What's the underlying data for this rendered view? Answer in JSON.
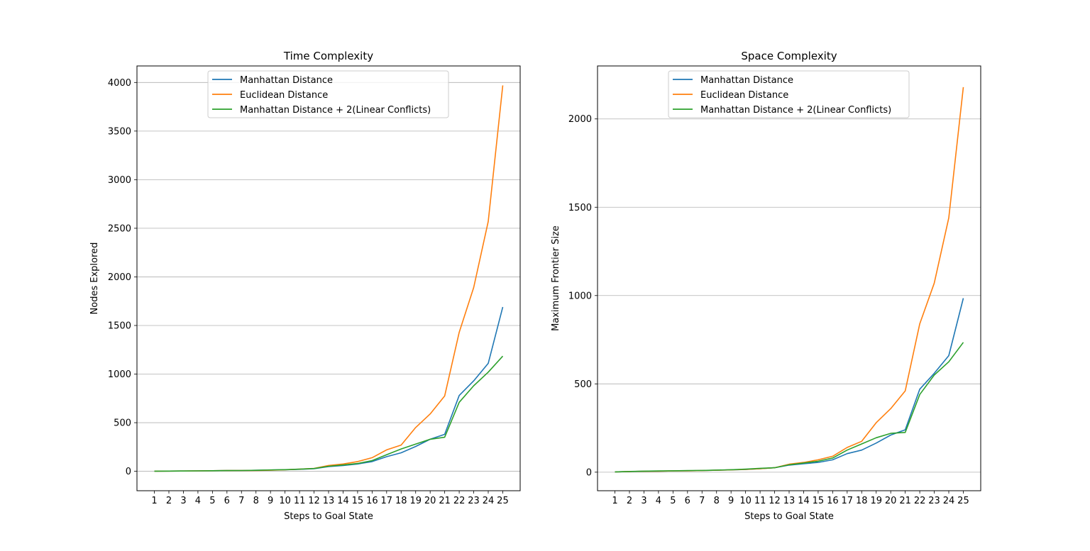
{
  "chart_data": [
    {
      "type": "line",
      "title": "Time Complexity",
      "xlabel": "Steps to Goal State",
      "ylabel": "Nodes Explored",
      "x": [
        1,
        2,
        3,
        4,
        5,
        6,
        7,
        8,
        9,
        10,
        11,
        12,
        13,
        14,
        15,
        16,
        17,
        18,
        19,
        20,
        21,
        22,
        23,
        24,
        25
      ],
      "ylim": [
        -200,
        4170
      ],
      "yticks": [
        0,
        500,
        1000,
        1500,
        2000,
        2500,
        3000,
        3500,
        4000
      ],
      "grid": "horizontal",
      "legend_position": "upper center",
      "series": [
        {
          "name": "Manhattan Distance",
          "color": "#1f77b4",
          "values": [
            1,
            2,
            3,
            4,
            6,
            7,
            8,
            10,
            13,
            16,
            20,
            26,
            48,
            60,
            75,
            100,
            150,
            190,
            255,
            330,
            380,
            780,
            930,
            1110,
            1690
          ]
        },
        {
          "name": "Euclidean Distance",
          "color": "#ff7f0e",
          "values": [
            1,
            2,
            3,
            4,
            6,
            7,
            8,
            9,
            11,
            15,
            22,
            30,
            60,
            75,
            100,
            140,
            220,
            270,
            450,
            590,
            775,
            1430,
            1890,
            2570,
            3970
          ]
        },
        {
          "name": "Manhattan Distance + 2(Linear Conflicts)",
          "color": "#2ca02c",
          "values": [
            1,
            2,
            3,
            4,
            6,
            7,
            8,
            10,
            14,
            17,
            22,
            28,
            52,
            65,
            80,
            110,
            170,
            230,
            280,
            330,
            350,
            710,
            880,
            1020,
            1185
          ]
        }
      ]
    },
    {
      "type": "line",
      "title": "Space Complexity",
      "xlabel": "Steps to Goal State",
      "ylabel": "Maximum Frontier Size",
      "x": [
        1,
        2,
        3,
        4,
        5,
        6,
        7,
        8,
        9,
        10,
        11,
        12,
        13,
        14,
        15,
        16,
        17,
        18,
        19,
        20,
        21,
        22,
        23,
        24,
        25
      ],
      "ylim": [
        -105,
        2300
      ],
      "yticks": [
        0,
        500,
        1000,
        1500,
        2000
      ],
      "grid": "horizontal",
      "legend_position": "upper center",
      "series": [
        {
          "name": "Manhattan Distance",
          "color": "#1f77b4",
          "values": [
            2,
            4,
            5,
            6,
            7,
            8,
            9,
            11,
            13,
            15,
            20,
            25,
            40,
            48,
            55,
            70,
            105,
            125,
            165,
            210,
            240,
            470,
            560,
            660,
            985
          ]
        },
        {
          "name": "Euclidean Distance",
          "color": "#ff7f0e",
          "values": [
            2,
            4,
            5,
            6,
            7,
            8,
            9,
            11,
            13,
            16,
            20,
            25,
            45,
            55,
            70,
            90,
            140,
            175,
            280,
            360,
            460,
            840,
            1070,
            1440,
            2180
          ]
        },
        {
          "name": "Manhattan Distance + 2(Linear Conflicts)",
          "color": "#2ca02c",
          "values": [
            2,
            4,
            6,
            7,
            8,
            9,
            10,
            12,
            14,
            17,
            22,
            25,
            42,
            52,
            62,
            80,
            125,
            160,
            195,
            220,
            225,
            440,
            550,
            625,
            735
          ]
        }
      ]
    }
  ]
}
